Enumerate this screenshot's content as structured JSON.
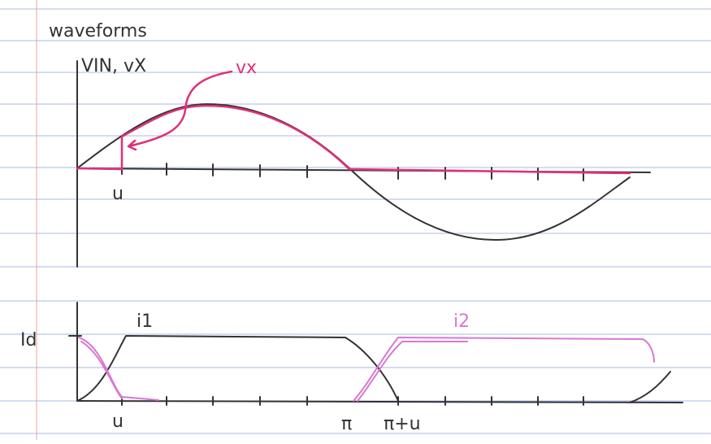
{
  "title": "waveforms",
  "top_plot": {
    "axis_label": "VIN, vX",
    "curve_label": "vx",
    "tick_label": "u"
  },
  "bottom_plot": {
    "axis_label": "Id",
    "curve_labels": [
      "i1",
      "i2"
    ],
    "tick_labels": [
      "u",
      "π",
      "π+u"
    ]
  }
}
